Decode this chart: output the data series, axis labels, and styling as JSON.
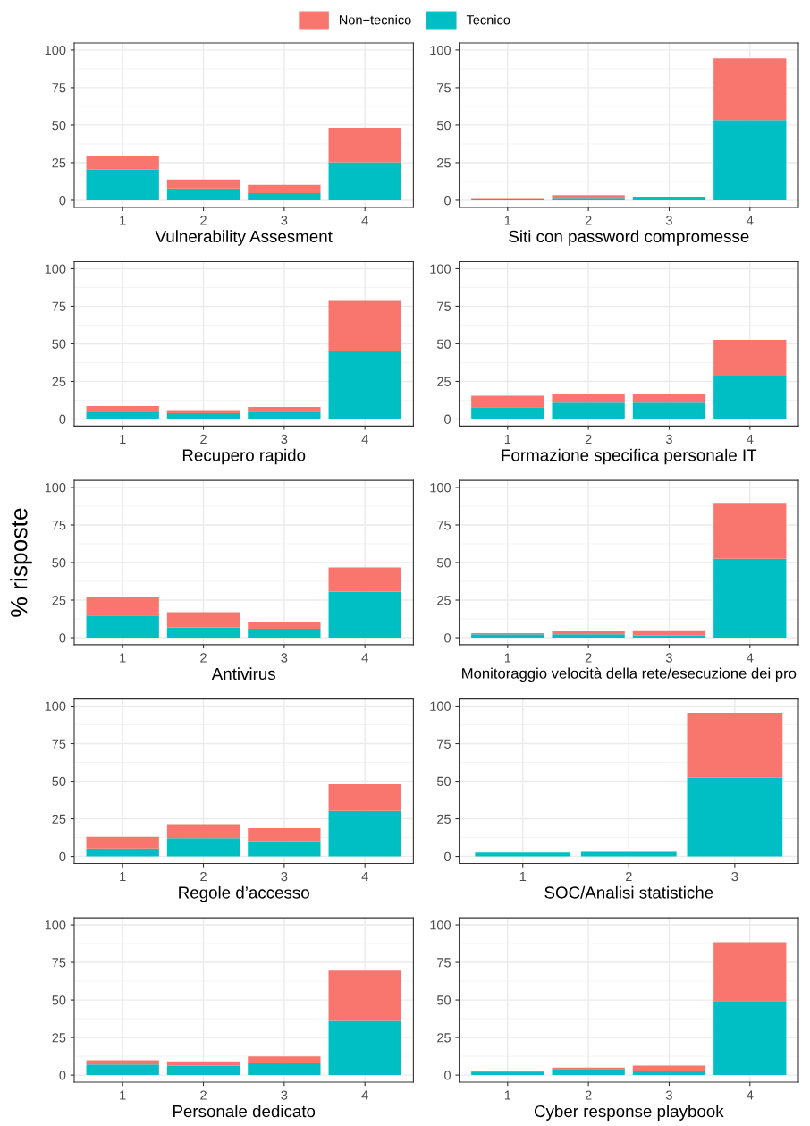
{
  "chart_data": [
    {
      "type": "bar",
      "stacked": true,
      "xlabel": "Vulnerability Assesment",
      "categories": [
        "1",
        "2",
        "3",
        "4"
      ],
      "ylim": [
        -4.7,
        104.7
      ],
      "yticks": [
        0,
        25,
        50,
        75,
        100
      ],
      "grid": true,
      "legend": "top",
      "series": [
        {
          "name": "Tecnico",
          "color": "#00bfc4",
          "values": [
            20.4,
            7.9,
            4.7,
            25.3
          ]
        },
        {
          "name": "Non−tecnico",
          "color": "#f8766d",
          "values": [
            9.4,
            5.9,
            5.6,
            22.9
          ]
        }
      ]
    },
    {
      "type": "bar",
      "stacked": true,
      "xlabel": "Siti con password compromesse",
      "categories": [
        "1",
        "2",
        "3",
        "4"
      ],
      "ylim": [
        -4.7,
        104.7
      ],
      "yticks": [
        0,
        25,
        50,
        75,
        100
      ],
      "grid": true,
      "series": [
        {
          "color": "#00bfc4",
          "values": [
            0.8,
            1.6,
            2.4,
            53.4
          ]
        },
        {
          "color": "#f8766d",
          "values": [
            0.6,
            1.8,
            0,
            41.1
          ]
        }
      ]
    },
    {
      "type": "bar",
      "stacked": true,
      "xlabel": "Recupero rapido",
      "categories": [
        "1",
        "2",
        "3",
        "4"
      ],
      "ylim": [
        -4.7,
        104.7
      ],
      "yticks": [
        0,
        25,
        50,
        75,
        100
      ],
      "grid": true,
      "series": [
        {
          "color": "#00bfc4",
          "values": [
            4.5,
            3.9,
            4.9,
            45.0
          ]
        },
        {
          "color": "#f8766d",
          "values": [
            4.2,
            2.0,
            3.2,
            34.1
          ]
        }
      ]
    },
    {
      "type": "bar",
      "stacked": true,
      "xlabel": "Formazione specifica personale IT",
      "categories": [
        "1",
        "2",
        "3",
        "4"
      ],
      "ylim": [
        -4.7,
        104.7
      ],
      "yticks": [
        0,
        25,
        50,
        75,
        100
      ],
      "grid": true,
      "series": [
        {
          "color": "#00bfc4",
          "values": [
            7.9,
            10.8,
            10.8,
            28.8
          ]
        },
        {
          "color": "#f8766d",
          "values": [
            7.5,
            6.2,
            5.6,
            23.9
          ]
        }
      ]
    },
    {
      "type": "bar",
      "stacked": true,
      "xlabel": "Antivirus",
      "ylabel": "% risposte",
      "categories": [
        "1",
        "2",
        "3",
        "4"
      ],
      "ylim": [
        -4.7,
        104.7
      ],
      "yticks": [
        0,
        25,
        50,
        75,
        100
      ],
      "grid": true,
      "series": [
        {
          "color": "#00bfc4",
          "values": [
            14.8,
            6.9,
            5.9,
            30.6
          ]
        },
        {
          "color": "#f8766d",
          "values": [
            12.5,
            10.1,
            4.8,
            16.2
          ]
        }
      ]
    },
    {
      "type": "bar",
      "stacked": true,
      "xlabel": "Monitoraggio velocità della rete/esecuzione dei pro",
      "categories": [
        "1",
        "2",
        "3",
        "4"
      ],
      "ylim": [
        -4.7,
        104.7
      ],
      "yticks": [
        0,
        25,
        50,
        75,
        100
      ],
      "grid": true,
      "series": [
        {
          "color": "#00bfc4",
          "values": [
            2.2,
            2.2,
            1.4,
            52.6
          ]
        },
        {
          "color": "#f8766d",
          "values": [
            0.8,
            2.3,
            3.5,
            37.1
          ]
        }
      ]
    },
    {
      "type": "bar",
      "stacked": true,
      "xlabel": "Regole d’accesso",
      "categories": [
        "1",
        "2",
        "3",
        "4"
      ],
      "ylim": [
        -4.7,
        104.7
      ],
      "yticks": [
        0,
        25,
        50,
        75,
        100
      ],
      "grid": true,
      "series": [
        {
          "color": "#00bfc4",
          "values": [
            5.3,
            12.1,
            10.1,
            30.2
          ]
        },
        {
          "color": "#f8766d",
          "values": [
            7.7,
            9.4,
            8.7,
            17.8
          ]
        }
      ]
    },
    {
      "type": "bar",
      "stacked": true,
      "xlabel": "SOC/Analisi statistiche",
      "categories": [
        "1",
        "2",
        "3"
      ],
      "ylim": [
        -4.7,
        104.7
      ],
      "yticks": [
        0,
        25,
        50,
        75,
        100
      ],
      "grid": true,
      "series": [
        {
          "color": "#00bfc4",
          "values": [
            2.6,
            2.8,
            52.2
          ]
        },
        {
          "color": "#f8766d",
          "values": [
            0,
            0.4,
            43.3
          ]
        }
      ]
    },
    {
      "type": "bar",
      "stacked": true,
      "xlabel": "Personale dedicato",
      "categories": [
        "1",
        "2",
        "3",
        "4"
      ],
      "ylim": [
        -4.7,
        104.7
      ],
      "yticks": [
        0,
        25,
        50,
        75,
        100
      ],
      "grid": true,
      "series": [
        {
          "color": "#00bfc4",
          "values": [
            7.1,
            6.1,
            8.3,
            36.1
          ]
        },
        {
          "color": "#f8766d",
          "values": [
            2.8,
            3.0,
            4.1,
            33.5
          ]
        }
      ]
    },
    {
      "type": "bar",
      "stacked": true,
      "xlabel": "Cyber response playbook",
      "categories": [
        "1",
        "2",
        "3",
        "4"
      ],
      "ylim": [
        -4.7,
        104.7
      ],
      "yticks": [
        0,
        25,
        50,
        75,
        100
      ],
      "grid": true,
      "series": [
        {
          "color": "#00bfc4",
          "values": [
            1.8,
            4.1,
            2.8,
            49.3
          ]
        },
        {
          "color": "#f8766d",
          "values": [
            0.6,
            0.8,
            3.5,
            39.1
          ]
        }
      ]
    }
  ]
}
